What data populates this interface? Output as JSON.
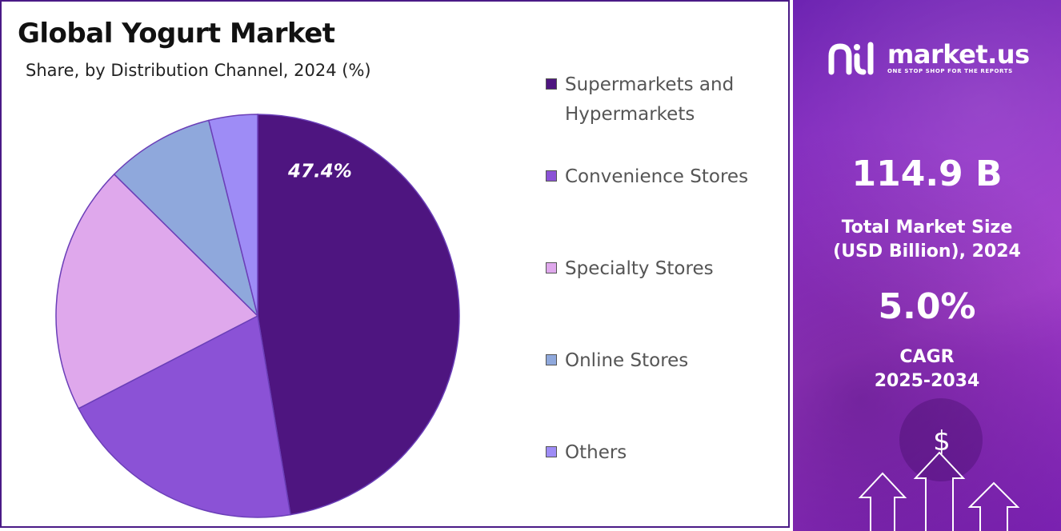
{
  "header": {
    "title": "Global Yogurt Market",
    "subtitle": "Share, by Distribution Channel, 2024 (%)"
  },
  "chart_data": {
    "type": "pie",
    "title": "Global Yogurt Market",
    "subtitle": "Share, by Distribution Channel, 2024 (%)",
    "categories": [
      "Supermarkets and Hypermarkets",
      "Convenience Stores",
      "Specialty Stores",
      "Online Stores",
      "Others"
    ],
    "values": [
      47.4,
      20.0,
      20.0,
      8.7,
      3.9
    ],
    "colors": [
      "#4e1580",
      "#8b52d6",
      "#dfa8ec",
      "#8fa8dc",
      "#9e8cf6"
    ],
    "data_labels": [
      "47.4%",
      "",
      "",
      "",
      ""
    ],
    "legend_position": "right"
  },
  "legend": {
    "items": [
      {
        "label": "Supermarkets and Hypermarkets",
        "color": "#4e1580"
      },
      {
        "label": "Convenience Stores",
        "color": "#8b52d6"
      },
      {
        "label": "Specialty Stores",
        "color": "#dfa8ec"
      },
      {
        "label": "Online Stores",
        "color": "#8fa8dc"
      },
      {
        "label": "Others",
        "color": "#9e8cf6"
      }
    ]
  },
  "sidebar": {
    "brand_name": "market.us",
    "brand_tagline": "ONE STOP SHOP FOR THE REPORTS",
    "market_size_value": "114.9 B",
    "market_size_label": "Total Market Size (USD Billion), 2024",
    "cagr_value": "5.0%",
    "cagr_label_line1": "CAGR",
    "cagr_label_line2": "2025-2034",
    "currency_symbol": "$",
    "brand_icon": "market-us-logo-icon",
    "decor_icons": [
      "dollar-icon",
      "up-arrow-icon"
    ]
  }
}
